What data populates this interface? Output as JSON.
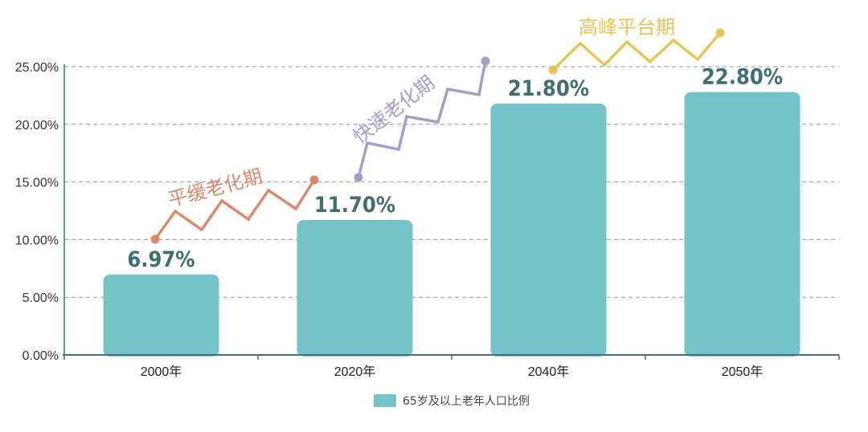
{
  "chart_data": {
    "type": "bar",
    "categories": [
      "2000年",
      "2020年",
      "2040年",
      "2050年"
    ],
    "series": [
      {
        "name": "65岁及以上老年人口比例",
        "values": [
          6.97,
          11.7,
          21.8,
          22.8
        ]
      }
    ],
    "data_labels": [
      "6.97%",
      "11.70%",
      "21.80%",
      "22.80%"
    ],
    "y_ticks": [
      "0.00%",
      "5.00%",
      "10.00%",
      "15.00%",
      "20.00%",
      "25.00%"
    ],
    "ylim": [
      0,
      25
    ],
    "grid": true,
    "legend_position": "bottom",
    "title": "",
    "xlabel": "",
    "ylabel": "",
    "annotations": [
      {
        "text": "平缓老化期",
        "color": "#d98a6c"
      },
      {
        "text": "快速老化期",
        "color": "#a99bc9"
      },
      {
        "text": "高峰平台期",
        "color": "#e8c45a"
      }
    ],
    "colors": {
      "bar": "#74c3c7",
      "axis": "#44707a",
      "grid": "#7f9aa6"
    }
  }
}
